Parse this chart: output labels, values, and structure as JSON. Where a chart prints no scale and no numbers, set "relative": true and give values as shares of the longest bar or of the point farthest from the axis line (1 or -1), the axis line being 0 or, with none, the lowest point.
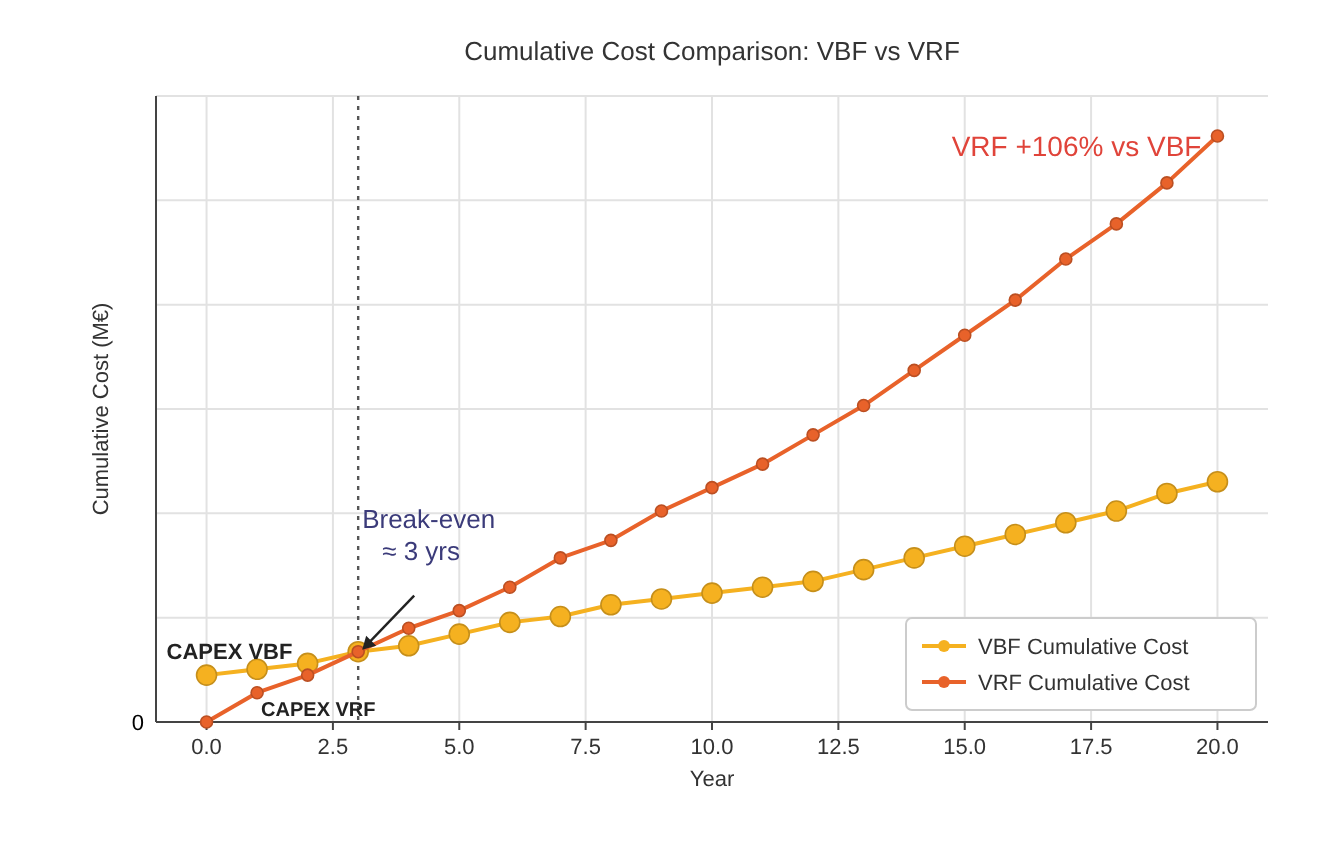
{
  "chart_data": {
    "type": "line",
    "title": "Cumulative Cost Comparison: VBF vs VRF",
    "xlabel": "Year",
    "ylabel": "Cumulative Cost (M€)",
    "relative": true,
    "x": [
      0,
      1,
      2,
      3,
      4,
      5,
      6,
      7,
      8,
      9,
      10,
      11,
      12,
      13,
      14,
      15,
      16,
      17,
      18,
      19,
      20
    ],
    "xlim": [
      -1,
      21
    ],
    "xticks": [
      {
        "value": 0,
        "label": "0.0"
      },
      {
        "value": 2.5,
        "label": "2.5"
      },
      {
        "value": 5,
        "label": "5.0"
      },
      {
        "value": 7.5,
        "label": "7.5"
      },
      {
        "value": 10,
        "label": "10.0"
      },
      {
        "value": 12.5,
        "label": "12.5"
      },
      {
        "value": 15,
        "label": "15.0"
      },
      {
        "value": 17.5,
        "label": "17.5"
      },
      {
        "value": 20,
        "label": "20.0"
      }
    ],
    "series": [
      {
        "name": "VBF Cumulative Cost",
        "color": "#f5b120",
        "values": [
          0.08,
          0.09,
          0.1,
          0.12,
          0.13,
          0.15,
          0.17,
          0.18,
          0.2,
          0.21,
          0.22,
          0.23,
          0.24,
          0.26,
          0.28,
          0.3,
          0.32,
          0.34,
          0.36,
          0.39,
          0.41
        ]
      },
      {
        "name": "VRF Cumulative Cost",
        "color": "#e8622a",
        "values": [
          0,
          0.05,
          0.08,
          0.12,
          0.16,
          0.19,
          0.23,
          0.28,
          0.31,
          0.36,
          0.4,
          0.44,
          0.49,
          0.54,
          0.6,
          0.66,
          0.72,
          0.79,
          0.85,
          0.92,
          1
        ]
      }
    ],
    "ref_lines": [
      {
        "axis": "x",
        "value": 3,
        "line_style": "dotted",
        "color": "#555555"
      }
    ],
    "annotations": [
      {
        "text": "CAPEX VBF",
        "x": 0,
        "y": 0.08
      },
      {
        "text": "CAPEX VRF",
        "x": 0,
        "y": 0
      },
      {
        "text": "Break-even\n≈ 3 yrs",
        "x": 3,
        "y": 0.12
      },
      {
        "text": "VRF +106% vs VBF",
        "x": 20,
        "y": 1
      },
      "0"
    ],
    "grid": true,
    "legend": "bottom right",
    "marker": "circle",
    "line_style": "solid"
  }
}
